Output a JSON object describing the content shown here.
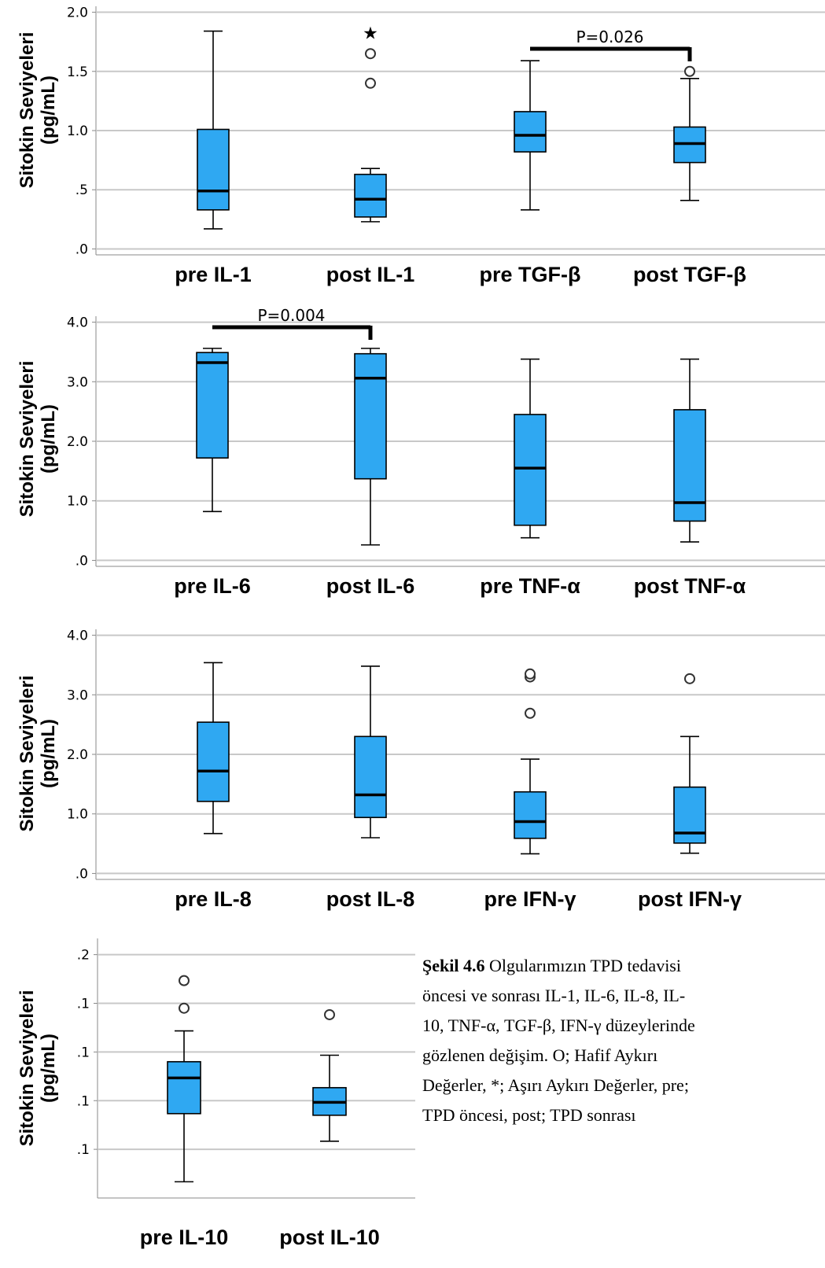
{
  "chart_data": [
    {
      "type": "box",
      "ylabel": [
        "Sitokin Seviyeleri",
        "(pg/mL)"
      ],
      "yticks": [
        {
          "value": 0,
          "label": ".0"
        },
        {
          "value": 0.5,
          "label": ".5"
        },
        {
          "value": 1.0,
          "label": "1.0"
        },
        {
          "value": 1.5,
          "label": "1.5"
        },
        {
          "value": 2.0,
          "label": "2.0"
        }
      ],
      "ylim": [
        -0.05,
        2.05
      ],
      "grid": true,
      "categories": [
        "pre IL-1",
        "post IL-1",
        "pre TGF-β",
        "post TGF-β"
      ],
      "boxes": [
        {
          "min": 0.17,
          "q1": 0.33,
          "median": 0.49,
          "q3": 1.01,
          "max": 1.84,
          "outliers": [],
          "extremes": []
        },
        {
          "min": 0.23,
          "q1": 0.27,
          "median": 0.42,
          "q3": 0.63,
          "max": 0.68,
          "outliers": [
            1.4,
            1.65
          ],
          "extremes": [
            1.84
          ]
        },
        {
          "min": 0.33,
          "q1": 0.82,
          "median": 0.96,
          "q3": 1.16,
          "max": 1.59,
          "outliers": [],
          "extremes": []
        },
        {
          "min": 0.41,
          "q1": 0.73,
          "median": 0.89,
          "q3": 1.03,
          "max": 1.44,
          "outliers": [
            1.5
          ],
          "extremes": []
        }
      ],
      "annotations": [
        {
          "text": "P=0.026",
          "from": 2,
          "to": 3
        }
      ]
    },
    {
      "type": "box",
      "ylabel": [
        "Sitokin Seviyeleri",
        "(pg/mL)"
      ],
      "yticks": [
        {
          "value": 0,
          "label": ".0"
        },
        {
          "value": 1.0,
          "label": "1.0"
        },
        {
          "value": 2.0,
          "label": "2.0"
        },
        {
          "value": 3.0,
          "label": "3.0"
        },
        {
          "value": 4.0,
          "label": "4.0"
        }
      ],
      "ylim": [
        -0.1,
        4.1
      ],
      "grid": true,
      "categories": [
        "pre IL-6",
        "post IL-6",
        "pre TNF-α",
        "post TNF-α"
      ],
      "boxes": [
        {
          "min": 0.82,
          "q1": 1.72,
          "median": 3.32,
          "q3": 3.49,
          "max": 3.56,
          "outliers": [],
          "extremes": []
        },
        {
          "min": 0.26,
          "q1": 1.37,
          "median": 3.06,
          "q3": 3.47,
          "max": 3.56,
          "outliers": [],
          "extremes": []
        },
        {
          "min": 0.38,
          "q1": 0.59,
          "median": 1.55,
          "q3": 2.45,
          "max": 3.38,
          "outliers": [],
          "extremes": []
        },
        {
          "min": 0.31,
          "q1": 0.66,
          "median": 0.97,
          "q3": 2.53,
          "max": 3.38,
          "outliers": [],
          "extremes": []
        }
      ],
      "annotations": [
        {
          "text": "P=0.004",
          "from": 0,
          "to": 1
        }
      ]
    },
    {
      "type": "box",
      "ylabel": [
        "Sitokin Seviyeleri",
        "(pg/mL)"
      ],
      "yticks": [
        {
          "value": 0,
          "label": ".0"
        },
        {
          "value": 1.0,
          "label": "1.0"
        },
        {
          "value": 2.0,
          "label": "2.0"
        },
        {
          "value": 3.0,
          "label": "3.0"
        },
        {
          "value": 4.0,
          "label": "4.0"
        }
      ],
      "ylim": [
        -0.1,
        4.1
      ],
      "grid": true,
      "categories": [
        "pre IL-8",
        "post IL-8",
        "pre IFN-γ",
        "post IFN-γ"
      ],
      "boxes": [
        {
          "min": 0.67,
          "q1": 1.21,
          "median": 1.72,
          "q3": 2.54,
          "max": 3.54,
          "outliers": [],
          "extremes": []
        },
        {
          "min": 0.6,
          "q1": 0.94,
          "median": 1.32,
          "q3": 2.3,
          "max": 3.48,
          "outliers": [],
          "extremes": []
        },
        {
          "min": 0.33,
          "q1": 0.59,
          "median": 0.87,
          "q3": 1.37,
          "max": 1.92,
          "outliers": [
            2.69,
            3.3,
            3.35
          ],
          "extremes": []
        },
        {
          "min": 0.34,
          "q1": 0.51,
          "median": 0.68,
          "q3": 1.45,
          "max": 2.3,
          "outliers": [
            3.27
          ],
          "extremes": []
        }
      ],
      "annotations": []
    },
    {
      "type": "box",
      "ylabel": [
        "Sitokin Seviyeleri",
        "(pg/mL)"
      ],
      "yticks": [
        {
          "value": 0.06,
          "label": ".1"
        },
        {
          "value": 0.09,
          "label": ".1"
        },
        {
          "value": 0.12,
          "label": ".1"
        },
        {
          "value": 0.15,
          "label": ".1"
        },
        {
          "value": 0.18,
          "label": ".2"
        }
      ],
      "ylim": [
        0.03,
        0.19
      ],
      "grid": true,
      "categories": [
        "pre IL-10",
        "post IL-10"
      ],
      "boxes": [
        {
          "min": 0.04,
          "q1": 0.082,
          "median": 0.104,
          "q3": 0.114,
          "max": 0.133,
          "outliers": [
            0.147,
            0.164
          ],
          "extremes": []
        },
        {
          "min": 0.065,
          "q1": 0.081,
          "median": 0.089,
          "q3": 0.098,
          "max": 0.118,
          "outliers": [
            0.143
          ],
          "extremes": []
        }
      ],
      "annotations": []
    }
  ],
  "caption": {
    "label": "Şekil 4.6",
    "lines": [
      " Olgularımızın TPD tedavisi",
      "öncesi ve sonrası IL-1, IL-6, IL-8, IL-",
      "10, TNF-α, TGF-β, IFN-γ düzeylerinde",
      "gözlenen  değişim.  O;  Hafif  Aykırı",
      "Değerler, *; Aşırı Aykırı Değerler, pre;",
      "TPD öncesi, post; TPD sonrası"
    ]
  },
  "colors": {
    "box_fill": "#2FA8F2",
    "grid": "#c8c8c8",
    "frame": "#888888"
  }
}
